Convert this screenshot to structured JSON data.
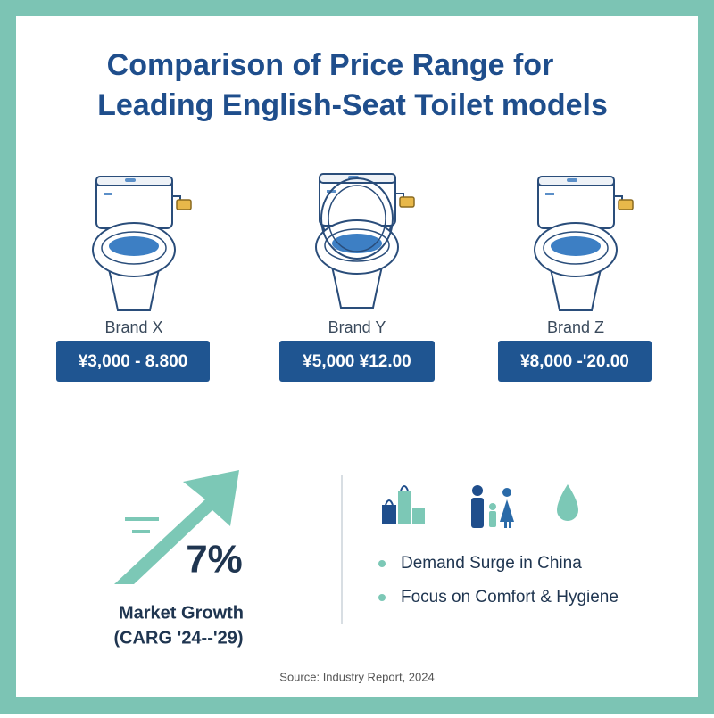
{
  "header": {
    "title_lines": [
      "Comparison of Price Range for",
      "Leading English-Seat Toilet models"
    ]
  },
  "products": [
    {
      "brand": "Brand X",
      "price": "¥3,000 - 8.800"
    },
    {
      "brand": "Brand Y",
      "price": "¥5,000  ¥12.00"
    },
    {
      "brand": "Brand Z",
      "price": "¥8,000 -'20.00"
    }
  ],
  "growth": {
    "value": "7%",
    "label": "Market Growth",
    "period": "(CARG '24--'29)"
  },
  "drivers": [
    "Demand Surge in China",
    "Focus on Comfort & Hygiene"
  ],
  "source": "Source: Industry Report, 2024"
}
